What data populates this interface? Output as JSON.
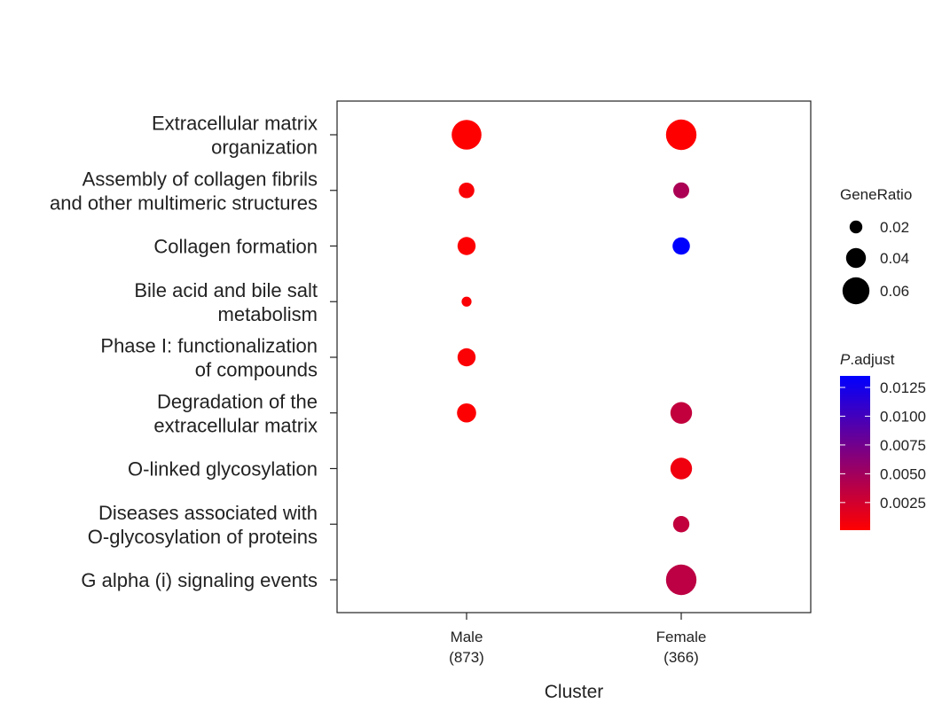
{
  "chart_data": {
    "type": "scatter",
    "xlabel": "Cluster",
    "x_categories": [
      {
        "name": "Male",
        "count": "(873)"
      },
      {
        "name": "Female",
        "count": "(366)"
      }
    ],
    "y_categories": [
      [
        "Extracellular matrix",
        "organization"
      ],
      [
        "Assembly of collagen fibrils",
        "and other multimeric structures"
      ],
      [
        "Collagen formation"
      ],
      [
        "Bile acid and bile salt",
        "metabolism"
      ],
      [
        "Phase I: functionalization",
        "of compounds"
      ],
      [
        "Degradation of the",
        "extracellular matrix"
      ],
      [
        "O-linked glycosylation"
      ],
      [
        "Diseases associated with",
        "O-glycosylation of proteins"
      ],
      [
        "G alpha (i) signaling events"
      ]
    ],
    "points": [
      {
        "x": 0,
        "y": 0,
        "gene_ratio": 0.068,
        "p_adjust": 0.0001
      },
      {
        "x": 0,
        "y": 1,
        "gene_ratio": 0.028,
        "p_adjust": 0.0004
      },
      {
        "x": 0,
        "y": 2,
        "gene_ratio": 0.035,
        "p_adjust": 0.0002
      },
      {
        "x": 0,
        "y": 3,
        "gene_ratio": 0.012,
        "p_adjust": 0.0003
      },
      {
        "x": 0,
        "y": 4,
        "gene_ratio": 0.035,
        "p_adjust": 0.0003
      },
      {
        "x": 0,
        "y": 5,
        "gene_ratio": 0.038,
        "p_adjust": 0.0002
      },
      {
        "x": 1,
        "y": 0,
        "gene_ratio": 0.07,
        "p_adjust": 0.0001
      },
      {
        "x": 1,
        "y": 1,
        "gene_ratio": 0.029,
        "p_adjust": 0.0045
      },
      {
        "x": 1,
        "y": 2,
        "gene_ratio": 0.033,
        "p_adjust": 0.0135
      },
      {
        "x": 1,
        "y": 5,
        "gene_ratio": 0.045,
        "p_adjust": 0.0033
      },
      {
        "x": 1,
        "y": 6,
        "gene_ratio": 0.045,
        "p_adjust": 0.0009
      },
      {
        "x": 1,
        "y": 7,
        "gene_ratio": 0.03,
        "p_adjust": 0.0033
      },
      {
        "x": 1,
        "y": 8,
        "gene_ratio": 0.07,
        "p_adjust": 0.0036
      }
    ],
    "size_legend": {
      "title": "GeneRatio",
      "entries": [
        {
          "label": "0.02",
          "value": 0.02
        },
        {
          "label": "0.04",
          "value": 0.04
        },
        {
          "label": "0.06",
          "value": 0.06
        }
      ]
    },
    "color_legend": {
      "title_italic": "P",
      "title_rest": ".adjust",
      "range": [
        0.0001,
        0.0135
      ],
      "low_color": "#ff0000",
      "high_color": "#0000ff",
      "ticks": [
        {
          "label": "0.0125",
          "value": 0.0125
        },
        {
          "label": "0.0100",
          "value": 0.01
        },
        {
          "label": "0.0075",
          "value": 0.0075
        },
        {
          "label": "0.0050",
          "value": 0.005
        },
        {
          "label": "0.0025",
          "value": 0.0025
        }
      ]
    },
    "legend_position": "right",
    "grid": false
  }
}
